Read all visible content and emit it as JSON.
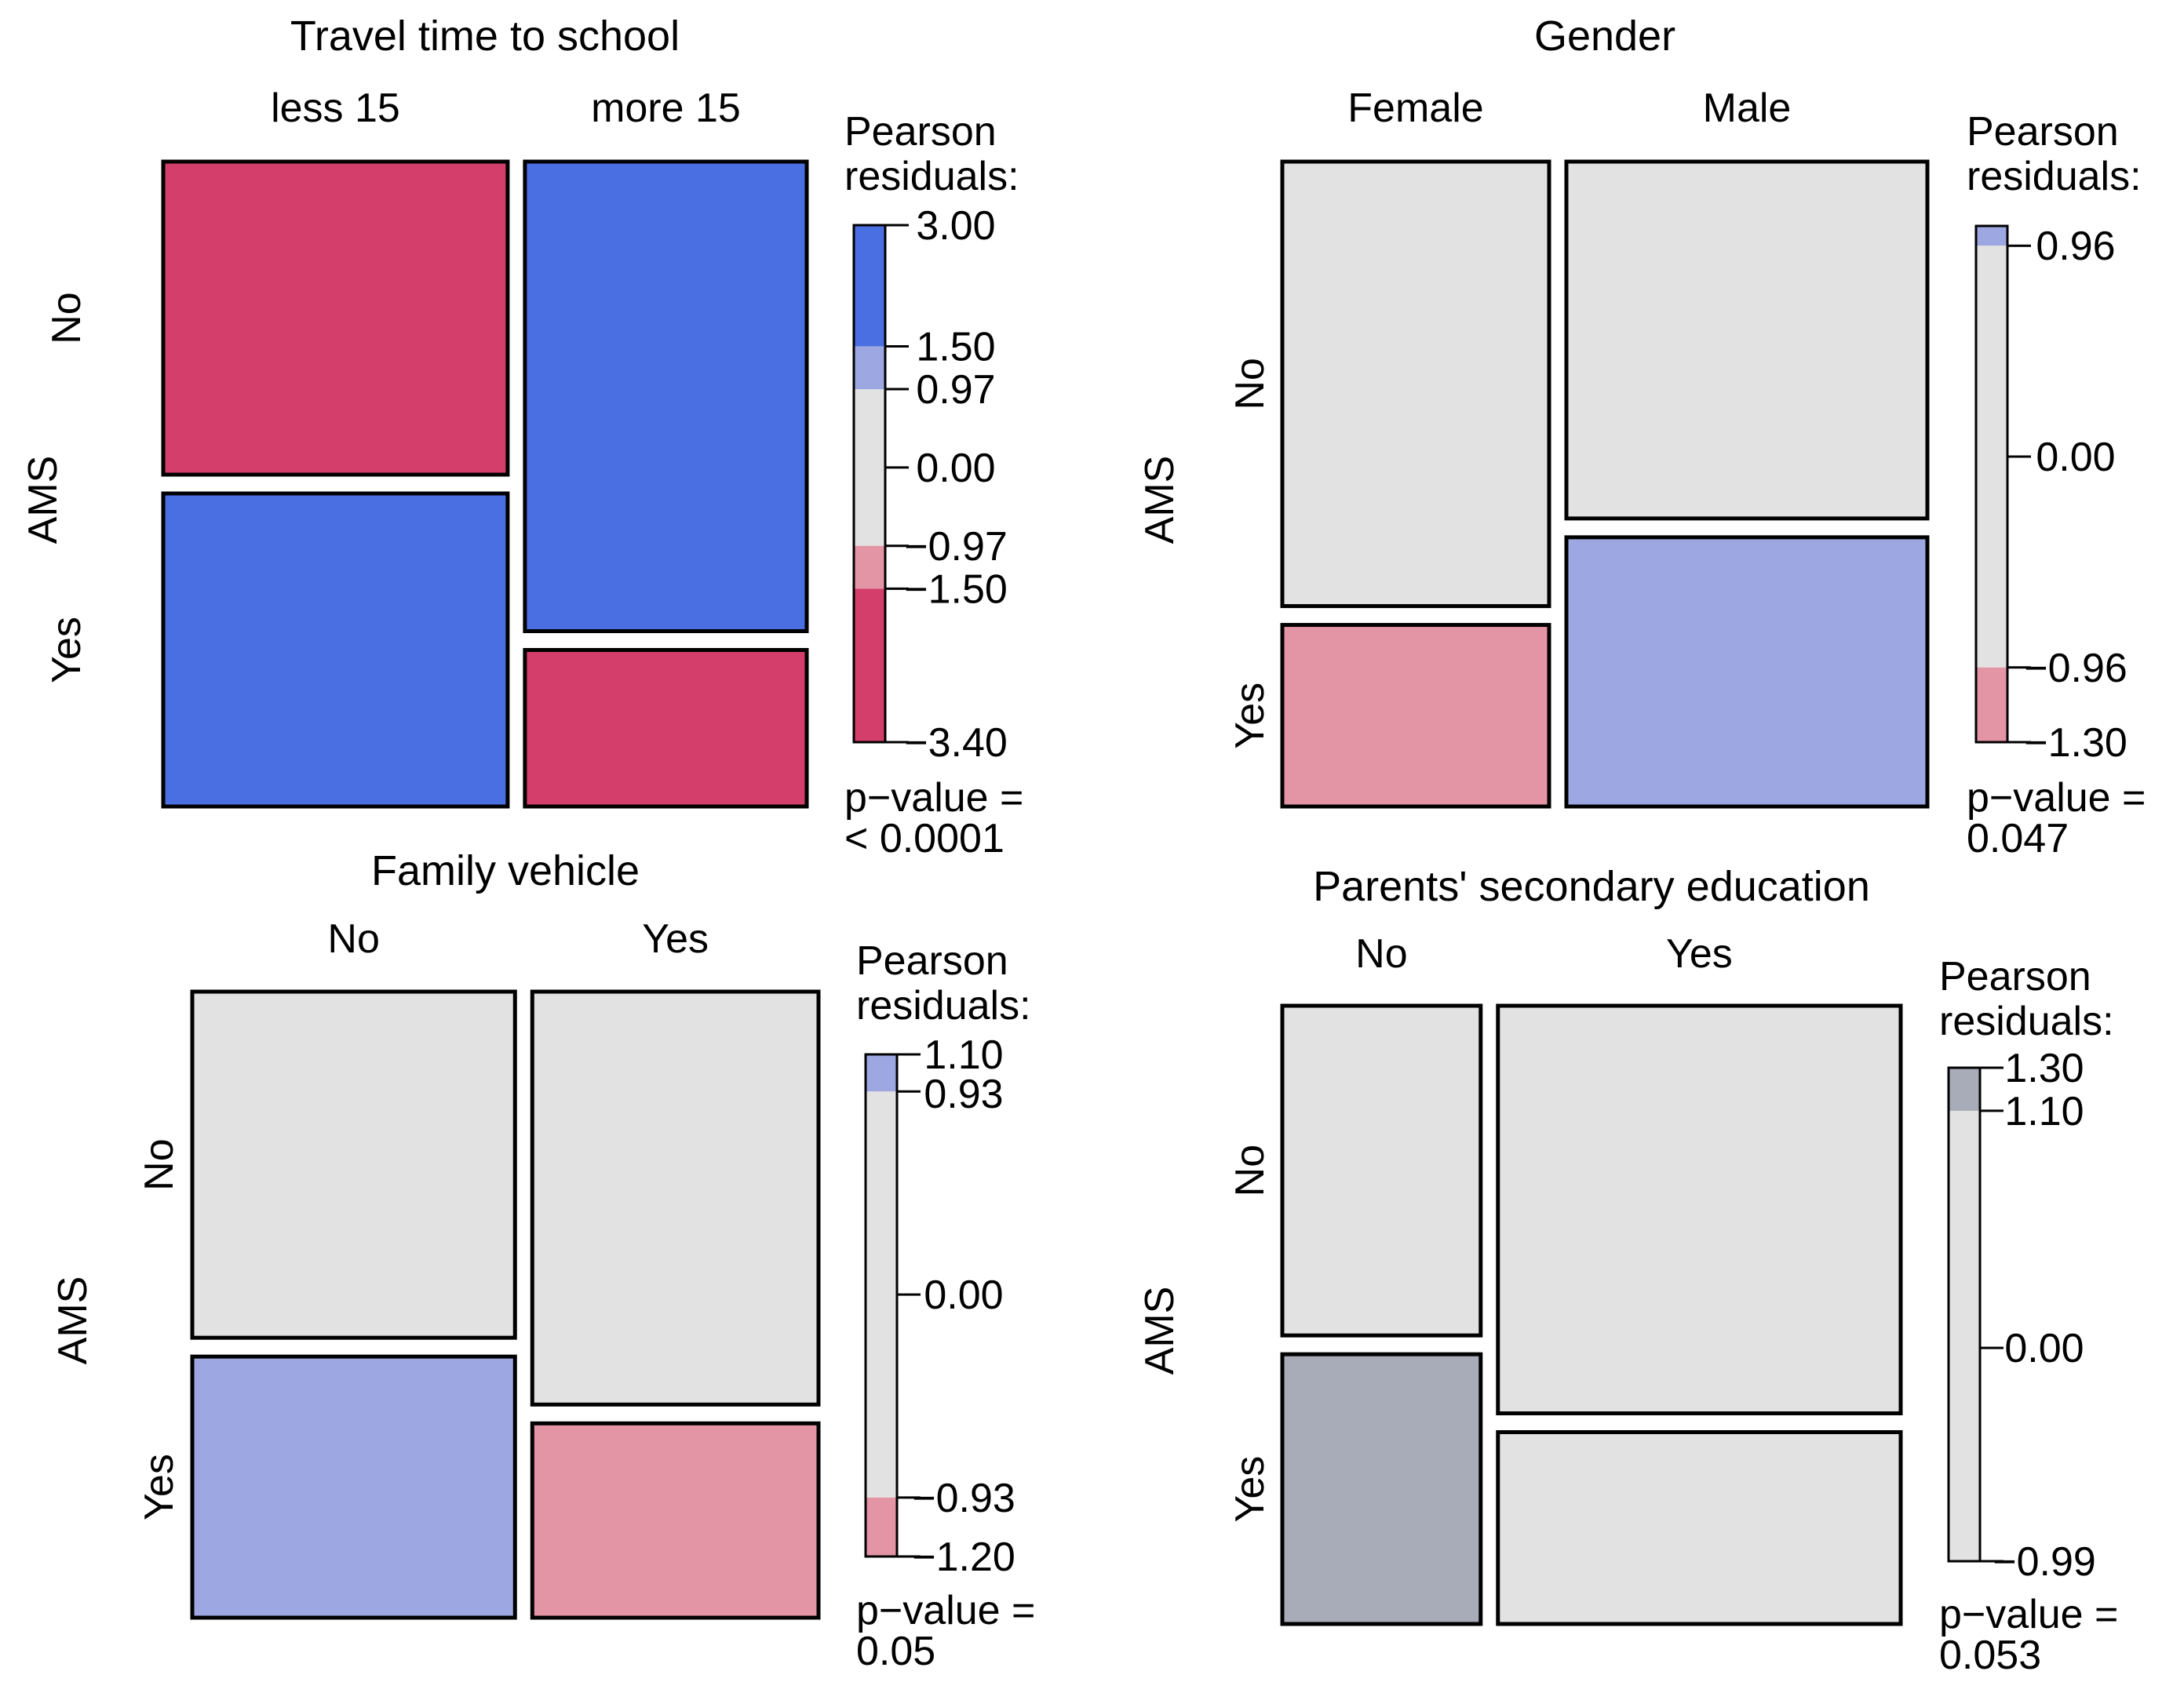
{
  "chart_data": [
    {
      "type": "mosaic",
      "title": "Travel time to school",
      "x_categories": [
        "less  15",
        "more  15"
      ],
      "y_variable": "AMS",
      "y_categories": [
        "No",
        "Yes"
      ],
      "column_proportions": [
        0.55,
        0.45
      ],
      "conditional_proportions": {
        "No": [
          0.5,
          0.75
        ],
        "Yes": [
          0.5,
          0.25
        ]
      },
      "residual_shading": {
        "No": [
          "strong-negative",
          "strong-positive"
        ],
        "Yes": [
          "strong-positive",
          "strong-negative"
        ]
      },
      "legend": {
        "title_line1": "Pearson",
        "title_line2": "residuals:",
        "range": [
          -3.4,
          3.0
        ],
        "ticks": [
          3.0,
          1.5,
          0.97,
          0.0,
          -0.97,
          -1.5,
          -3.4
        ],
        "tick_labels": [
          "3.00",
          "1.50",
          "0.97",
          "0.00",
          "−0.97",
          "−1.50",
          "−3.40"
        ],
        "bands": [
          {
            "from": 1.5,
            "to": 3.0,
            "color": "#4A6FE3"
          },
          {
            "from": 0.97,
            "to": 1.5,
            "color": "#9DA8E2"
          },
          {
            "from": -0.97,
            "to": 0.97,
            "color": "#E2E2E2"
          },
          {
            "from": -1.5,
            "to": -0.97,
            "color": "#E495A5"
          },
          {
            "from": -3.4,
            "to": -1.5,
            "color": "#D33F6A"
          }
        ]
      },
      "pvalue_line1": "p−value =",
      "pvalue_line2": "<  0.0001"
    },
    {
      "type": "mosaic",
      "title": "Gender",
      "x_categories": [
        "Female",
        "Male"
      ],
      "y_variable": "AMS",
      "y_categories": [
        "No",
        "Yes"
      ],
      "column_proportions": [
        0.425,
        0.575
      ],
      "conditional_proportions": {
        "No": [
          0.71,
          0.57
        ],
        "Yes": [
          0.29,
          0.43
        ]
      },
      "residual_shading": {
        "No": [
          "neutral",
          "neutral"
        ],
        "Yes": [
          "weak-negative",
          "weak-positive"
        ]
      },
      "legend": {
        "title_line1": "Pearson",
        "title_line2": "residuals:",
        "range": [
          -1.3,
          1.05
        ],
        "ticks": [
          0.96,
          0.0,
          -0.96,
          -1.3
        ],
        "tick_labels": [
          "0.96",
          "0.00",
          "−0.96",
          "−1.30"
        ],
        "bands": [
          {
            "from": 0.96,
            "to": 1.05,
            "color": "#9DA8E2"
          },
          {
            "from": -0.96,
            "to": 0.96,
            "color": "#E2E2E2"
          },
          {
            "from": -1.3,
            "to": -0.96,
            "color": "#E495A5"
          }
        ]
      },
      "pvalue_line1": "p−value =",
      "pvalue_line2": "0.047"
    },
    {
      "type": "mosaic",
      "title": "Family  vehicle",
      "x_categories": [
        "No",
        "Yes"
      ],
      "y_variable": "AMS",
      "y_categories": [
        "No",
        "Yes"
      ],
      "column_proportions": [
        0.53,
        0.47
      ],
      "conditional_proportions": {
        "No": [
          0.57,
          0.68
        ],
        "Yes": [
          0.43,
          0.32
        ]
      },
      "residual_shading": {
        "No": [
          "neutral",
          "neutral"
        ],
        "Yes": [
          "weak-positive",
          "weak-negative"
        ]
      },
      "legend": {
        "title_line1": "Pearson",
        "title_line2": "residuals:",
        "range": [
          -1.2,
          1.1
        ],
        "ticks": [
          1.1,
          0.93,
          0.0,
          -0.93,
          -1.2
        ],
        "tick_labels": [
          "1.10",
          "0.93",
          "0.00",
          "−0.93",
          "−1.20"
        ],
        "bands": [
          {
            "from": 0.93,
            "to": 1.1,
            "color": "#9DA8E2"
          },
          {
            "from": -0.93,
            "to": 0.93,
            "color": "#E2E2E2"
          },
          {
            "from": -1.2,
            "to": -0.93,
            "color": "#E495A5"
          }
        ]
      },
      "pvalue_line1": "p−value =",
      "pvalue_line2": "0.05"
    },
    {
      "type": "mosaic",
      "title": "Parents' secondary education",
      "x_categories": [
        "No",
        "Yes"
      ],
      "y_variable": "AMS",
      "y_categories": [
        "No",
        "Yes"
      ],
      "column_proportions": [
        0.33,
        0.67
      ],
      "conditional_proportions": {
        "No": [
          0.55,
          0.68
        ],
        "Yes": [
          0.45,
          0.32
        ]
      },
      "residual_shading": {
        "No": [
          "neutral",
          "neutral"
        ],
        "Yes": [
          "weak-positive-grey",
          "neutral"
        ]
      },
      "legend": {
        "title_line1": "Pearson",
        "title_line2": "residuals:",
        "range": [
          -0.99,
          1.3
        ],
        "ticks": [
          1.3,
          1.1,
          0.0,
          -0.99
        ],
        "tick_labels": [
          "1.30",
          "1.10",
          "0.00",
          "−0.99"
        ],
        "bands": [
          {
            "from": 1.1,
            "to": 1.3,
            "color": "#A8ABB8"
          },
          {
            "from": -0.99,
            "to": 1.1,
            "color": "#E2E2E2"
          }
        ]
      },
      "pvalue_line1": "p−value =",
      "pvalue_line2": "0.053"
    }
  ],
  "shading_colors": {
    "strong-positive": "#4A6FE3",
    "weak-positive": "#9DA8E2",
    "neutral": "#E2E2E2",
    "weak-negative": "#E495A5",
    "strong-negative": "#D33F6A",
    "weak-positive-grey": "#A8ABB8"
  }
}
